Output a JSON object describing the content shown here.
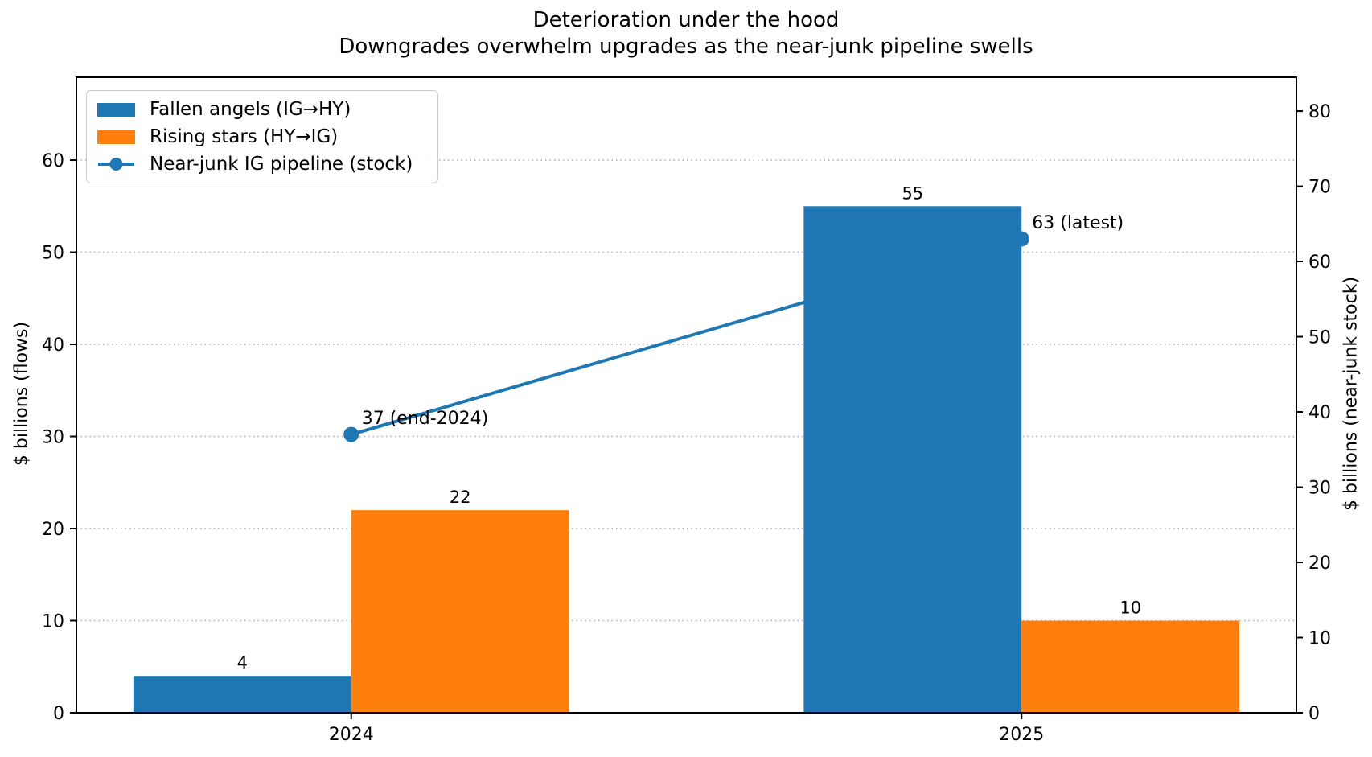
{
  "figure": {
    "title": "Deterioration under the hood",
    "subtitle": "Downgrades overwhelm upgrades as the near-junk pipeline swells"
  },
  "chart_data": {
    "type": "bar",
    "categories": [
      "2024",
      "2025"
    ],
    "series": [
      {
        "name": "Fallen angels (IG→HY)",
        "kind": "bar",
        "axis": "left",
        "color": "#1f77b4",
        "values": [
          4,
          55
        ],
        "value_labels": [
          "4",
          "55"
        ]
      },
      {
        "name": "Rising stars (HY→IG)",
        "kind": "bar",
        "axis": "left",
        "color": "#ff7f0e",
        "values": [
          22,
          10
        ],
        "value_labels": [
          "22",
          "10"
        ]
      },
      {
        "name": "Near-junk IG pipeline (stock)",
        "kind": "line",
        "axis": "right",
        "color": "#1f77b4",
        "values": [
          37,
          63
        ],
        "point_labels": [
          "37 (end-2024)",
          "63 (latest)"
        ]
      }
    ],
    "left_axis": {
      "label": "$ billions (flows)",
      "ticks": [
        0,
        10,
        20,
        30,
        40,
        50,
        60
      ],
      "min": 0,
      "max": 69
    },
    "right_axis": {
      "label": "$ billions (near-junk stock)",
      "ticks": [
        0,
        10,
        20,
        30,
        40,
        50,
        60,
        70,
        80
      ],
      "min": 0,
      "max": 84.5
    },
    "grid": {
      "horizontal": true,
      "vertical": false,
      "style": "dotted",
      "color": "#aaaaaa"
    },
    "legend_position": "upper left"
  },
  "legend": {
    "items": [
      {
        "label": "Fallen angels (IG→HY)",
        "color": "#1f77b4",
        "marker": "rect"
      },
      {
        "label": "Rising stars (HY→IG)",
        "color": "#ff7f0e",
        "marker": "rect"
      },
      {
        "label": "Near-junk IG pipeline (stock)",
        "color": "#1f77b4",
        "marker": "line-dot"
      }
    ]
  }
}
